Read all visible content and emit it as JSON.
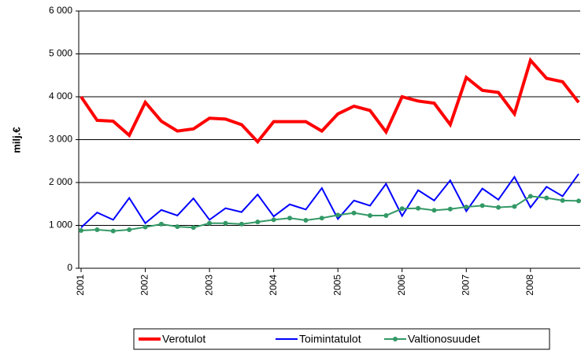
{
  "chart_data": {
    "type": "line",
    "ylabel": "milj.€",
    "categories": [
      "2001",
      null,
      null,
      null,
      "2002",
      null,
      null,
      null,
      "2003",
      null,
      null,
      null,
      "2004",
      null,
      null,
      null,
      "2005",
      null,
      null,
      null,
      "2006",
      null,
      null,
      null,
      "2007",
      null,
      null,
      null,
      "2008",
      null,
      null,
      null
    ],
    "series": [
      {
        "name": "Verotulot",
        "color": "#ff0000",
        "values": [
          4000,
          3450,
          3430,
          3100,
          3870,
          3430,
          3200,
          3250,
          3500,
          3480,
          3350,
          2950,
          3420,
          3420,
          3420,
          3200,
          3600,
          3780,
          3680,
          3180,
          4000,
          3900,
          3850,
          3350,
          4450,
          4150,
          4100,
          3600,
          4850,
          4430,
          4350,
          3870
        ]
      },
      {
        "name": "Toimintatulot",
        "color": "#0000ff",
        "values": [
          950,
          1300,
          1130,
          1640,
          1050,
          1360,
          1230,
          1630,
          1130,
          1400,
          1310,
          1720,
          1210,
          1490,
          1370,
          1870,
          1150,
          1580,
          1460,
          1970,
          1220,
          1820,
          1580,
          2050,
          1330,
          1860,
          1600,
          2130,
          1420,
          1900,
          1680,
          2200
        ]
      },
      {
        "name": "Valtionosuudet",
        "color": "#339966",
        "marker": true,
        "values": [
          880,
          900,
          870,
          900,
          960,
          1030,
          970,
          950,
          1050,
          1050,
          1030,
          1080,
          1130,
          1170,
          1120,
          1170,
          1240,
          1290,
          1230,
          1230,
          1390,
          1400,
          1350,
          1380,
          1430,
          1460,
          1420,
          1440,
          1680,
          1640,
          1580,
          1570
        ]
      }
    ],
    "ylim": [
      0,
      6000
    ],
    "yticks": [
      {
        "value": 0,
        "label": "0"
      },
      {
        "value": 1000,
        "label": "1 000"
      },
      {
        "value": 2000,
        "label": "2 000"
      },
      {
        "value": 3000,
        "label": "3 000"
      },
      {
        "value": 4000,
        "label": "4 000"
      },
      {
        "value": 5000,
        "label": "5 000"
      },
      {
        "value": 6000,
        "label": "6 000"
      }
    ],
    "grid": true,
    "legend": "bottom"
  }
}
